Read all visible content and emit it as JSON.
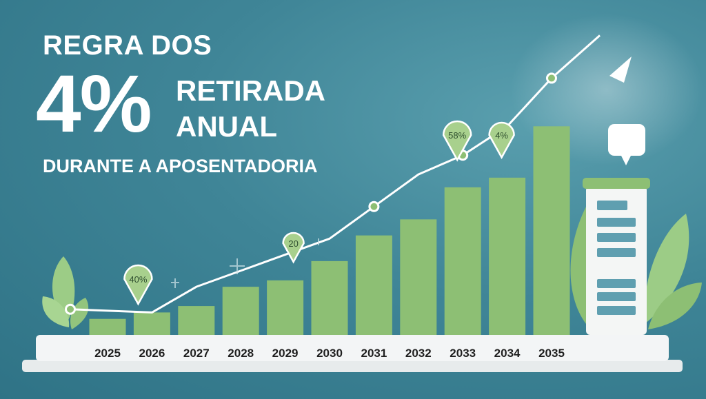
{
  "header": {
    "line1": "REGRA DOS",
    "big": "4%",
    "side1": "RETIRADA",
    "side2": "ANUAL",
    "subtitle": "DURANTE A APOSENTADORIA"
  },
  "colors": {
    "background": "#3f8597",
    "bar": "#8dbf74",
    "line": "#ffffff",
    "bubble": "#a8d08d"
  },
  "chart_data": {
    "type": "bar",
    "title": "REGRA DOS 4% RETIRADA ANUAL DURANTE A APOSENTADORIA",
    "categories": [
      "2025",
      "2026",
      "2027",
      "2028",
      "2029",
      "2030",
      "2031",
      "2032",
      "2033",
      "2034",
      "2035"
    ],
    "values": [
      5,
      7,
      9,
      15,
      17,
      23,
      31,
      36,
      46,
      49,
      65
    ],
    "ylim": [
      0,
      70
    ],
    "trend_line": {
      "type": "line",
      "values": [
        8,
        7,
        15,
        20,
        25,
        30,
        40,
        50,
        56,
        65,
        80
      ],
      "marked_points": [
        "2025",
        "2031",
        "2033",
        "2035"
      ]
    },
    "annotations": [
      {
        "category": "2026",
        "text": "40%"
      },
      {
        "category": "2029",
        "text": "20"
      },
      {
        "category": "2033",
        "text": "58%"
      },
      {
        "category": "2034",
        "text": "4%"
      }
    ],
    "grid": false
  }
}
